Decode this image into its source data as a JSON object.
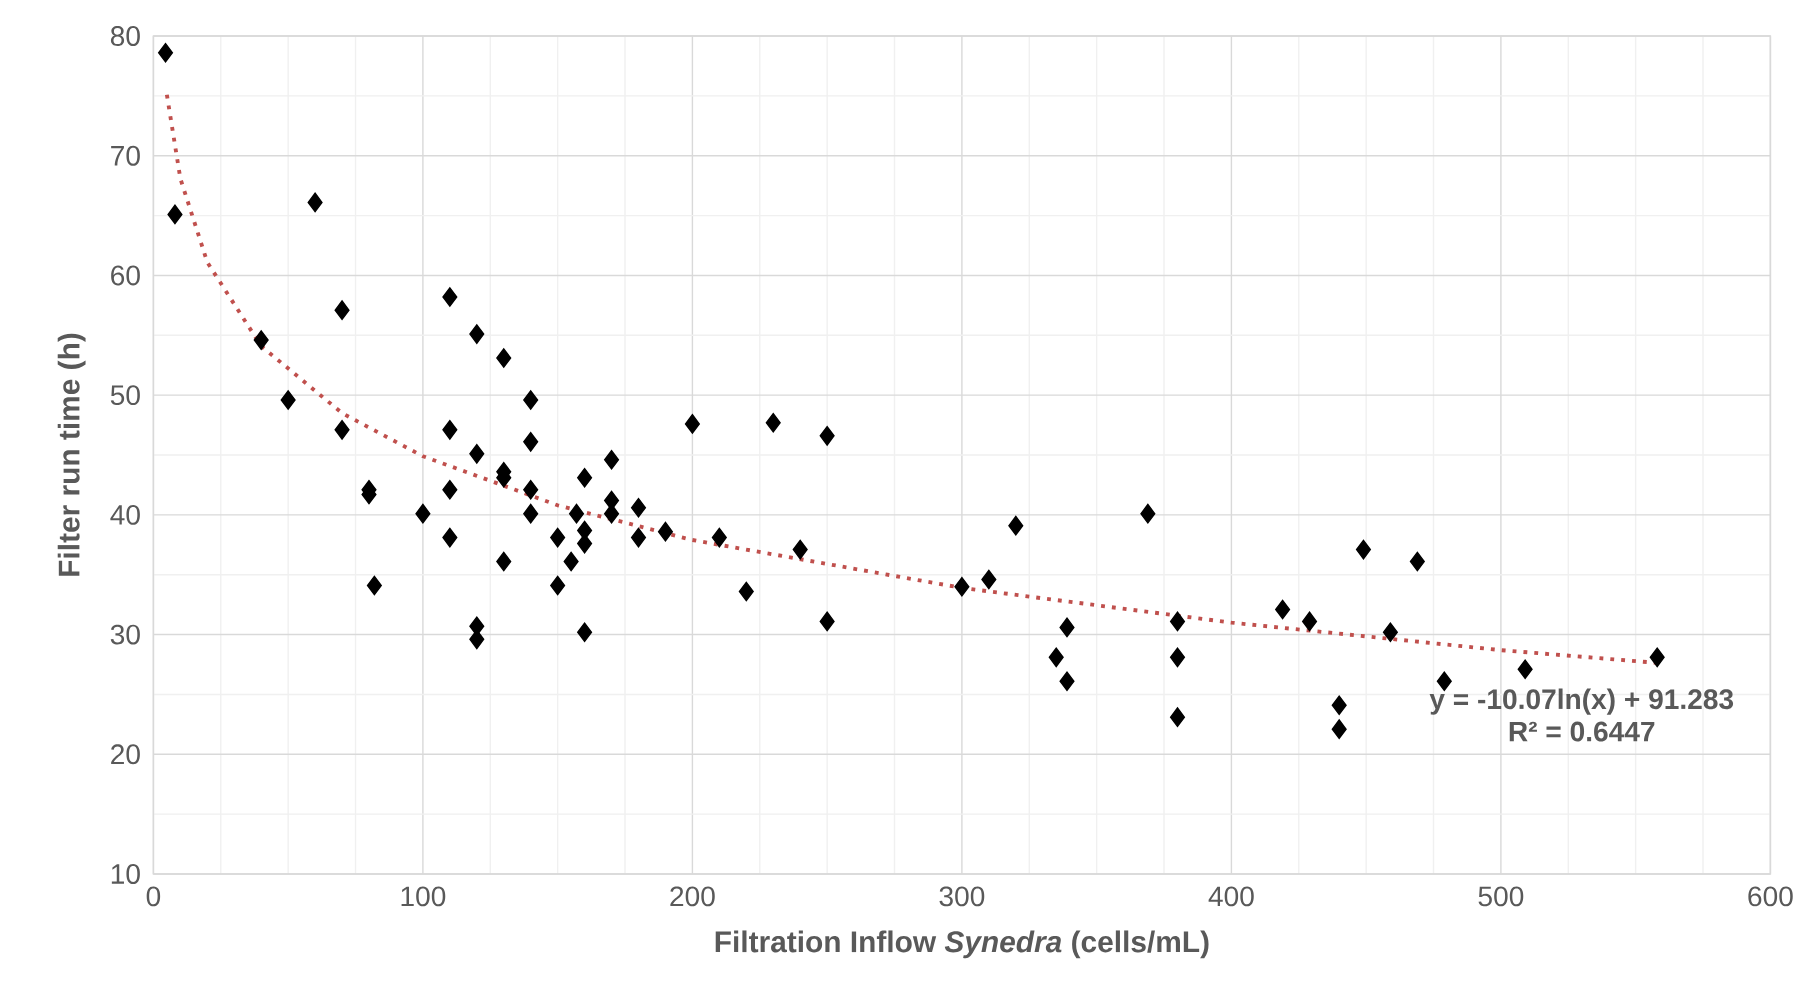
{
  "chart_data": {
    "type": "scatter",
    "xlabel": "Filtration Inflow *Synedra* (cells/mL)",
    "ylabel": "Filter run time (h)",
    "xlim": [
      0,
      600
    ],
    "xticks": [
      0,
      100,
      200,
      300,
      400,
      500,
      600
    ],
    "ylim": [
      10,
      80
    ],
    "yticks": [
      10,
      20,
      30,
      40,
      50,
      60,
      70,
      80
    ],
    "grid": true,
    "marker": "diamond",
    "series": [
      {
        "color": "#000000",
        "x": [
          4.5,
          8,
          60,
          40,
          70,
          50,
          70,
          80,
          80,
          82,
          100,
          110,
          110,
          110,
          110,
          120,
          120,
          120,
          120,
          130,
          130,
          130,
          130,
          140,
          140,
          140,
          140,
          150,
          150,
          155,
          157,
          160,
          160,
          160,
          160,
          170,
          170,
          170,
          180,
          180,
          190,
          200,
          210,
          230,
          250,
          220,
          240,
          250,
          300,
          310,
          320,
          335,
          339,
          339,
          369,
          380,
          380,
          380,
          419,
          429,
          440,
          440,
          449,
          459,
          469,
          479,
          509,
          558
        ],
        "values": [
          78.6,
          65.1,
          66.1,
          54.6,
          57.1,
          49.6,
          47.1,
          42.1,
          41.7,
          34.1,
          40.1,
          58.2,
          47.1,
          42.1,
          38.1,
          55.1,
          45.1,
          30.7,
          29.6,
          53.1,
          43.6,
          43.1,
          36.1,
          49.6,
          46.1,
          42.1,
          40.1,
          38.1,
          34.1,
          36.1,
          40.1,
          43.1,
          38.7,
          37.6,
          30.2,
          44.6,
          41.2,
          40.1,
          40.6,
          38.1,
          38.6,
          47.6,
          38.1,
          47.7,
          46.6,
          33.6,
          37.1,
          31.1,
          34.0,
          34.6,
          39.1,
          28.1,
          30.6,
          26.1,
          40.1,
          31.1,
          28.1,
          23.1,
          32.1,
          31.1,
          24.1,
          22.1,
          37.1,
          30.2,
          36.1,
          26.1,
          27.1,
          28.1
        ]
      },
      {
        "type": "line",
        "color": "#c0504d",
        "line_style": "dotted",
        "marker": "none",
        "x": [
          5,
          10,
          20,
          40,
          70,
          100,
          150,
          200,
          300,
          400,
          500,
          560
        ],
        "values": [
          75.1,
          68.1,
          61.1,
          54.1,
          48.5,
          44.9,
          40.8,
          37.9,
          33.9,
          31.0,
          28.7,
          27.6
        ]
      }
    ],
    "annotations": [
      "y = -10.07ln(x) + 91.283",
      "R² = 0.6447"
    ]
  }
}
